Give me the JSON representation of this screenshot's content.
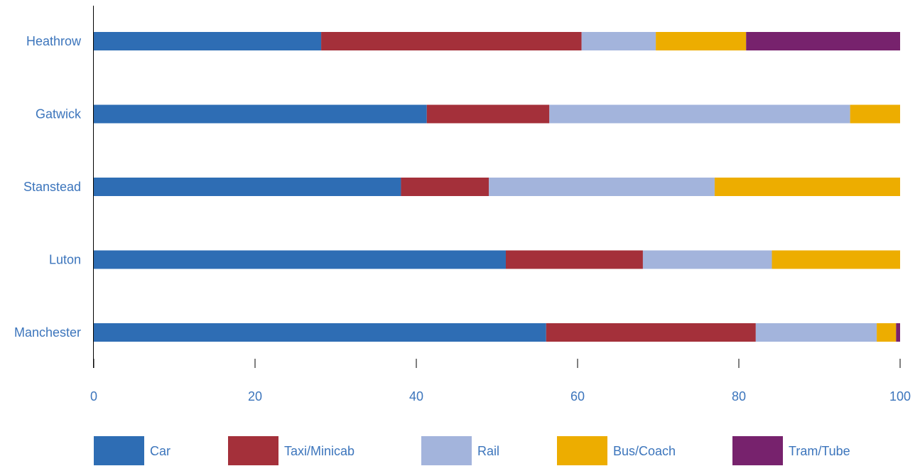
{
  "chart_data": {
    "type": "bar",
    "orientation": "horizontal",
    "stacked": true,
    "categories": [
      "Heathrow",
      "Gatwick",
      "Stanstead",
      "Luton",
      "Manchester"
    ],
    "series": [
      {
        "name": "Car",
        "color": "#2E6DB4",
        "values": [
          28.2,
          41.3,
          38.1,
          51.1,
          56.1
        ]
      },
      {
        "name": "Taxi/Minicab",
        "color": "#A4303A",
        "values": [
          32.3,
          15.2,
          10.9,
          17.0,
          26.0
        ]
      },
      {
        "name": "Rail",
        "color": "#A3B4DC",
        "values": [
          9.2,
          37.3,
          28.0,
          16.0,
          15.0
        ]
      },
      {
        "name": "Bus/Coach",
        "color": "#EDAD00",
        "values": [
          11.2,
          6.2,
          23.0,
          16.0,
          2.4
        ]
      },
      {
        "name": "Tram/Tube",
        "color": "#77226D",
        "values": [
          19.1,
          0,
          0,
          0,
          0.5
        ]
      }
    ],
    "x_ticks": [
      "0",
      "20",
      "40",
      "60",
      "80",
      "100"
    ],
    "xlim": [
      0,
      100
    ],
    "title": "",
    "xlabel": "",
    "ylabel": "",
    "grid": false,
    "legend_position": "bottom"
  }
}
